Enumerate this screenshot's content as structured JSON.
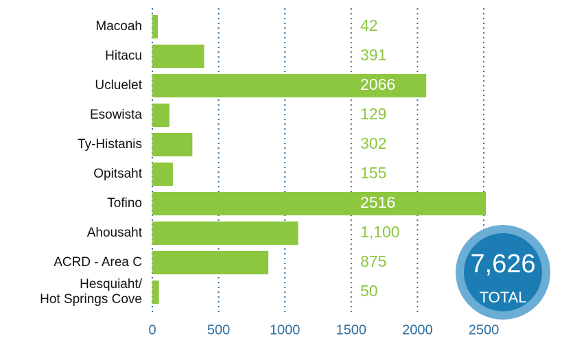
{
  "chart_data": {
    "type": "hbar",
    "categories": [
      "Macoah",
      "Hitacu",
      "Ucluelet",
      "Esowista",
      "Ty-Histanis",
      "Opitsaht",
      "Tofino",
      "Ahousaht",
      "ACRD - Area C",
      "Hesquiaht/\nHot Springs Cove"
    ],
    "values": [
      42,
      391,
      2066,
      129,
      302,
      155,
      2516,
      1100,
      875,
      50
    ],
    "value_labels": [
      "42",
      "391",
      "2066",
      "129",
      "302",
      "155",
      "2516",
      "1,100",
      "875",
      "50"
    ],
    "color": "#8dc63f",
    "xlim": [
      0,
      2500
    ],
    "xticks": [
      0,
      500,
      1000,
      1500,
      2000,
      2500
    ],
    "grid": true,
    "total": {
      "value": 7626,
      "label": "7,626"
    },
    "total_caption": "TOTAL"
  }
}
